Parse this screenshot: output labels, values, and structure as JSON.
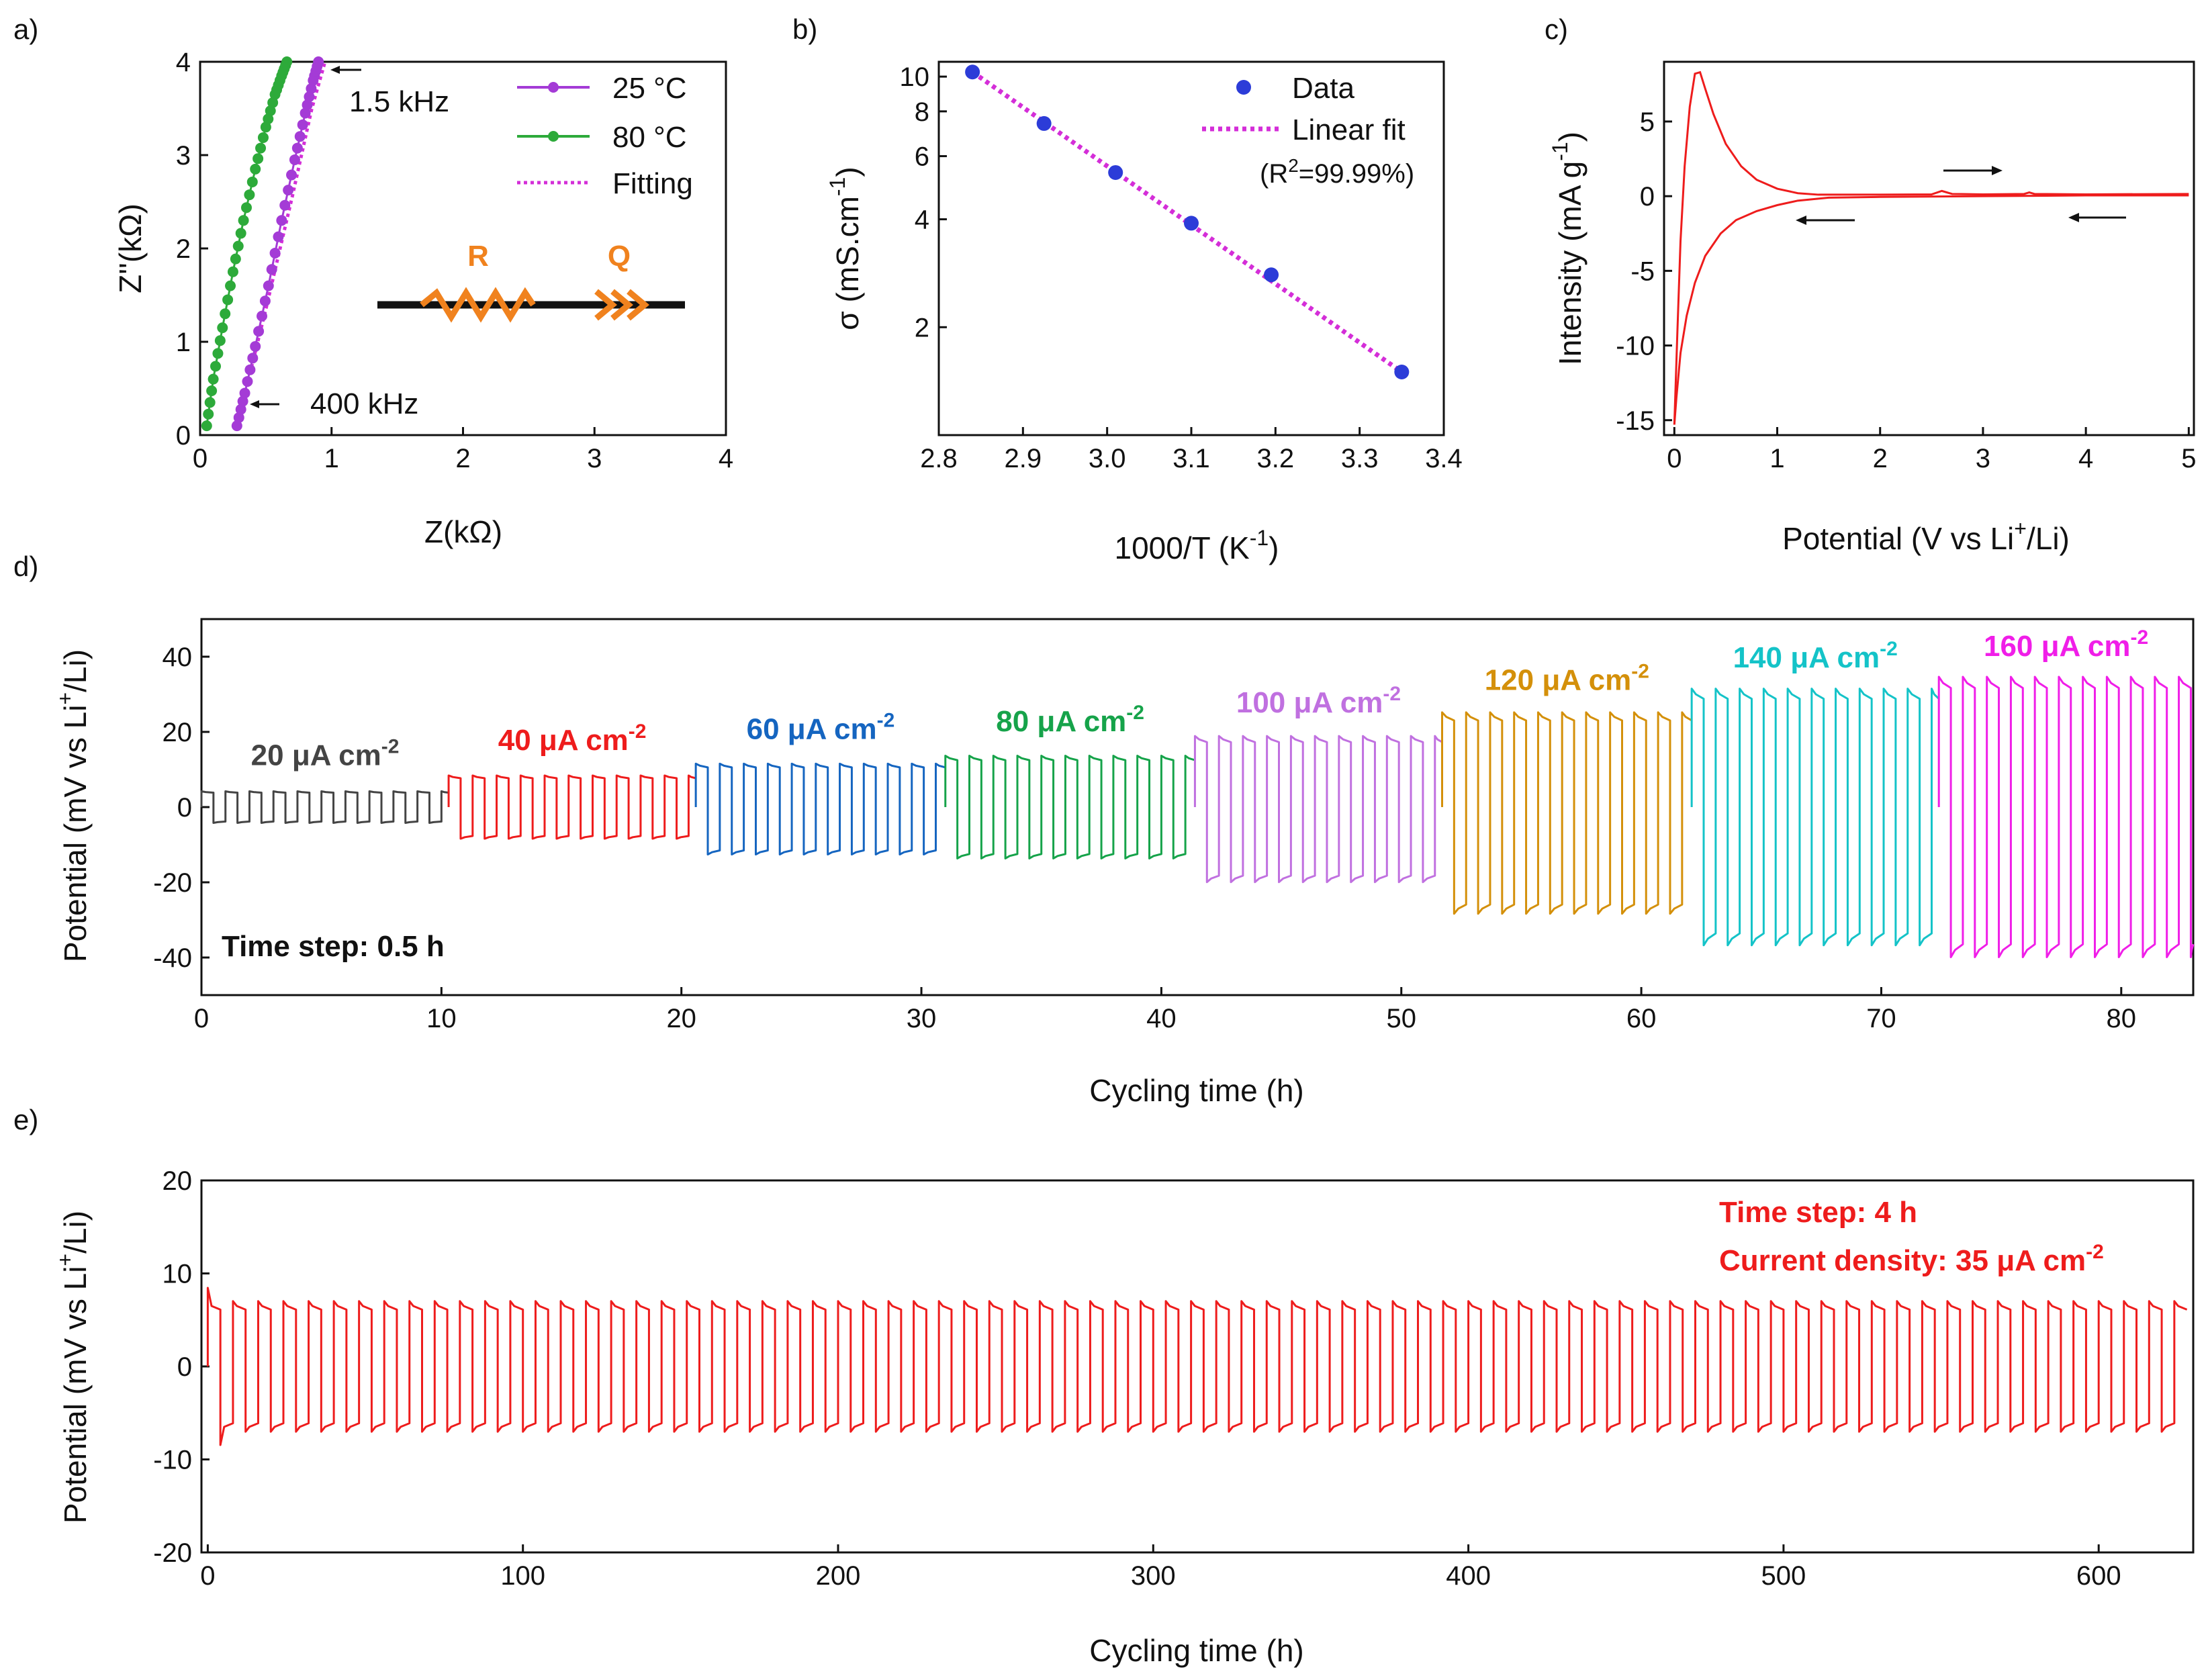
{
  "colors": {
    "black": "#111111",
    "purple": "#a43bd6",
    "green": "#2daa3a",
    "magenta_fit": "#d42ed8",
    "blue_marker": "#2c3cd8",
    "red": "#ee1c1c",
    "orange": "#f0821e",
    "gray": "#444444",
    "seg_blue": "#1565c0",
    "seg_green": "#16a34a",
    "seg_violet": "#c070e0",
    "seg_gold": "#d4900a",
    "seg_cyan": "#14c3c8",
    "seg_magenta": "#f01ee8"
  },
  "chart_data": [
    {
      "id": "a",
      "panel_label": "a)",
      "type": "scatter",
      "xlabel": "Z(kΩ)",
      "ylabel": "Z''(kΩ)",
      "xlim": [
        0,
        4
      ],
      "ylim": [
        0,
        4
      ],
      "xticks": [
        "0",
        "1",
        "2",
        "3",
        "4"
      ],
      "yticks": [
        "0",
        "1",
        "2",
        "3",
        "4"
      ],
      "series": [
        {
          "name": "25 °C",
          "x": [
            0.28,
            0.34,
            0.42,
            0.52,
            0.62,
            0.72,
            0.8,
            0.86,
            0.9
          ],
          "y": [
            0.1,
            0.45,
            0.95,
            1.6,
            2.3,
            2.95,
            3.45,
            3.8,
            4.0
          ]
        },
        {
          "name": "80 °C",
          "x": [
            0.05,
            0.1,
            0.17,
            0.25,
            0.33,
            0.42,
            0.5,
            0.57,
            0.62,
            0.66
          ],
          "y": [
            0.1,
            0.6,
            1.15,
            1.75,
            2.3,
            2.85,
            3.3,
            3.65,
            3.85,
            4.0
          ]
        },
        {
          "name": "Fitting",
          "x": [
            0.28,
            0.5,
            0.7,
            0.85,
            0.95
          ],
          "y": [
            0.1,
            1.35,
            2.55,
            3.5,
            4.0
          ]
        }
      ],
      "annotations": {
        "high_freq": "1.5 kHz",
        "low_freq": "400 kHz"
      },
      "circuit": {
        "r_label": "R",
        "q_label": "Q"
      }
    },
    {
      "id": "b",
      "panel_label": "b)",
      "type": "scatter",
      "xlabel_base": "1000/T (K",
      "xlabel_sup": "-1",
      "xlabel_end": ")",
      "ylabel_base": "σ (mS.cm",
      "ylabel_sup": "-1",
      "ylabel_end": ")",
      "xlim": [
        2.8,
        3.4
      ],
      "ylim_log": [
        1.0,
        11.0
      ],
      "xticks": [
        "2.8",
        "2.9",
        "3.0",
        "3.1",
        "3.2",
        "3.3",
        "3.4"
      ],
      "yticks": [
        {
          "value": 2,
          "label": "2"
        },
        {
          "value": 4,
          "label": "4"
        },
        {
          "value": 6,
          "label": "6"
        },
        {
          "value": 8,
          "label": "8"
        },
        {
          "value": 10,
          "label": "10"
        }
      ],
      "series": [
        {
          "name": "Data",
          "x": [
            2.84,
            2.925,
            3.01,
            3.1,
            3.195,
            3.35
          ],
          "y": [
            10.3,
            7.4,
            5.4,
            3.9,
            2.8,
            1.5
          ]
        },
        {
          "name": "Linear fit",
          "x": [
            2.84,
            3.35
          ],
          "y": [
            10.3,
            1.5
          ]
        }
      ],
      "r2_base": "(R",
      "r2_sup": "2",
      "r2_end": "=99.99%)"
    },
    {
      "id": "c",
      "panel_label": "c)",
      "type": "line",
      "xlabel_base": "Potential (V vs Li",
      "xlabel_sup": "+",
      "xlabel_end": "/Li)",
      "ylabel_base": "Intensity (mA g",
      "ylabel_sup": "-1",
      "ylabel_end": ")",
      "xlim": [
        -0.1,
        5.05
      ],
      "ylim": [
        -16,
        9
      ],
      "xticks": [
        "0",
        "1",
        "2",
        "3",
        "4",
        "5"
      ],
      "yticks": [
        "-15",
        "-10",
        "-5",
        "0",
        "5"
      ],
      "forward_x": [
        0,
        0.03,
        0.06,
        0.1,
        0.15,
        0.2,
        0.25,
        0.3,
        0.38,
        0.5,
        0.65,
        0.8,
        1.0,
        1.2,
        1.4,
        2.0,
        2.5,
        2.6,
        2.7,
        3.0,
        3.4,
        3.45,
        3.5,
        4.0,
        5.0
      ],
      "forward_y": [
        -15.3,
        -9,
        -3,
        2,
        6,
        8.2,
        8.3,
        7.2,
        5.5,
        3.5,
        2.0,
        1.1,
        0.5,
        0.2,
        0.1,
        0.1,
        0.12,
        0.35,
        0.15,
        0.12,
        0.15,
        0.25,
        0.15,
        0.12,
        0.15
      ],
      "reverse_x": [
        5.0,
        4.0,
        3.0,
        2.0,
        1.5,
        1.2,
        1.0,
        0.8,
        0.6,
        0.45,
        0.3,
        0.2,
        0.12,
        0.06,
        0.02,
        0
      ],
      "reverse_y": [
        0.05,
        0.05,
        0.0,
        -0.05,
        -0.1,
        -0.3,
        -0.6,
        -1.0,
        -1.6,
        -2.5,
        -4.0,
        -5.8,
        -8.0,
        -10.5,
        -13.5,
        -15.3
      ]
    },
    {
      "id": "d",
      "panel_label": "d)",
      "type": "line",
      "xlabel": "Cycling time (h)",
      "ylabel_base": "Potential (mV vs Li",
      "ylabel_sup": "+",
      "ylabel_end": "/Li)",
      "xlim": [
        0,
        83
      ],
      "ylim": [
        -50,
        50
      ],
      "xticks": [
        "0",
        "10",
        "20",
        "30",
        "40",
        "50",
        "60",
        "70",
        "80"
      ],
      "yticks": [
        "-40",
        "-20",
        "0",
        "20",
        "40"
      ],
      "time_step_h": 0.5,
      "note": "Time step: 0.5 h",
      "segments": [
        {
          "label_base": "20 μA cm",
          "label_sup": "-2",
          "start": 0,
          "end": 10.3,
          "amp_pos": 4,
          "amp_neg": -4,
          "color_key": "gray"
        },
        {
          "label_base": "40 μA cm",
          "label_sup": "-2",
          "start": 10.3,
          "end": 20.6,
          "amp_pos": 8,
          "amp_neg": -8,
          "color_key": "red"
        },
        {
          "label_base": "60 μA cm",
          "label_sup": "-2",
          "start": 20.6,
          "end": 31.0,
          "amp_pos": 11,
          "amp_neg": -12,
          "color_key": "seg_blue"
        },
        {
          "label_base": "80 μA cm",
          "label_sup": "-2",
          "start": 31.0,
          "end": 41.4,
          "amp_pos": 13,
          "amp_neg": -13,
          "color_key": "seg_green"
        },
        {
          "label_base": "100 μA cm",
          "label_sup": "-2",
          "start": 41.4,
          "end": 51.7,
          "amp_pos": 18,
          "amp_neg": -19,
          "color_key": "seg_violet"
        },
        {
          "label_base": "120 μA cm",
          "label_sup": "-2",
          "start": 51.7,
          "end": 62.1,
          "amp_pos": 24,
          "amp_neg": -27,
          "color_key": "seg_gold"
        },
        {
          "label_base": "140 μA cm",
          "label_sup": "-2",
          "start": 62.1,
          "end": 72.4,
          "amp_pos": 30,
          "amp_neg": -35,
          "color_key": "seg_cyan"
        },
        {
          "label_base": "160 μA cm",
          "label_sup": "-2",
          "start": 72.4,
          "end": 83.0,
          "amp_pos": 33,
          "amp_neg": -38,
          "color_key": "seg_magenta"
        }
      ]
    },
    {
      "id": "e",
      "panel_label": "e)",
      "type": "line",
      "xlabel": "Cycling time (h)",
      "ylabel_base": "Potential (mV vs Li",
      "ylabel_sup": "+",
      "ylabel_end": "/Li)",
      "xlim": [
        -2,
        630
      ],
      "ylim": [
        -20,
        20
      ],
      "xticks": [
        "0",
        "100",
        "200",
        "300",
        "400",
        "500",
        "600"
      ],
      "yticks": [
        "-20",
        "-10",
        "0",
        "10",
        "20"
      ],
      "time_step_h": 4,
      "amp_pos": 6.5,
      "amp_neg": -6.5,
      "notes": {
        "time_step": "Time step: 4 h",
        "current_base": "Current density: 35 μA cm",
        "current_sup": "-2"
      }
    }
  ]
}
